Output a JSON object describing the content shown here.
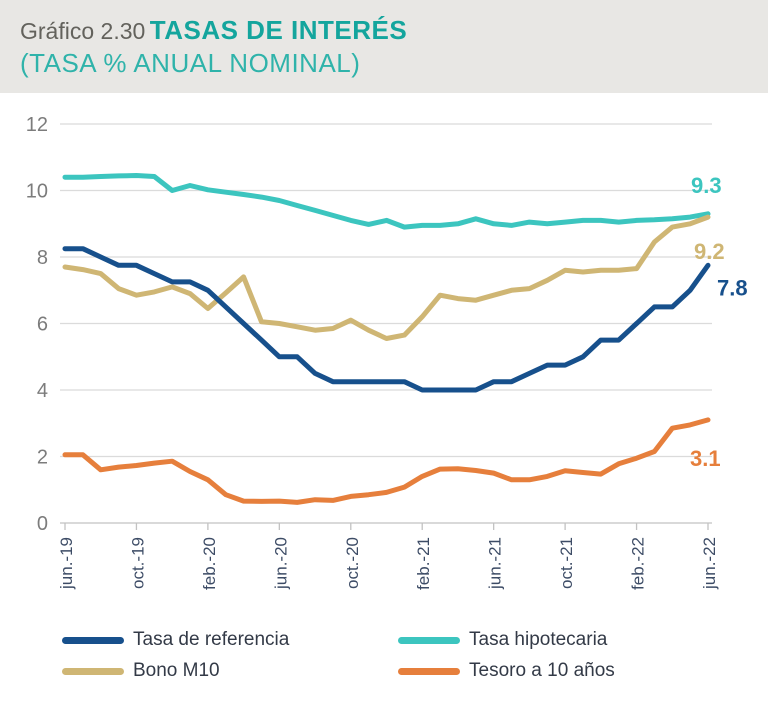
{
  "header": {
    "figure_label": "Gráfico 2.30",
    "title": "TASAS DE INTERÉS",
    "subtitle": "(TASA % ANUAL NOMINAL)"
  },
  "chart_data": {
    "type": "line",
    "n_points": 37,
    "tick_every": 4,
    "x_tick_labels": [
      "jun.-19",
      "oct.-19",
      "feb.-20",
      "jun.-20",
      "oct.-20",
      "feb.-21",
      "jun.-21",
      "oct.-21",
      "feb.-22",
      "jun.-22"
    ],
    "y_ticks": [
      0,
      2,
      4,
      6,
      8,
      10,
      12
    ],
    "ylim": [
      0,
      12
    ],
    "grid": "horizontal",
    "legend_position": "bottom",
    "series": [
      {
        "name": "Tasa de referencia",
        "color": "#17508c",
        "end_label": "7.8",
        "values": [
          8.25,
          8.25,
          8.0,
          7.75,
          7.75,
          7.5,
          7.25,
          7.25,
          7.0,
          6.5,
          6.0,
          5.5,
          5.0,
          5.0,
          4.5,
          4.25,
          4.25,
          4.25,
          4.25,
          4.25,
          4.0,
          4.0,
          4.0,
          4.0,
          4.25,
          4.25,
          4.5,
          4.75,
          4.75,
          5.0,
          5.5,
          5.5,
          6.0,
          6.5,
          6.5,
          7.0,
          7.75
        ]
      },
      {
        "name": "Tasa hipotecaria",
        "color": "#3cc5bf",
        "end_label": "9.3",
        "values": [
          10.4,
          10.4,
          10.42,
          10.44,
          10.45,
          10.42,
          10.0,
          10.15,
          10.02,
          9.95,
          9.88,
          9.8,
          9.7,
          9.55,
          9.4,
          9.25,
          9.1,
          8.98,
          9.1,
          8.9,
          8.95,
          8.95,
          9.0,
          9.15,
          9.0,
          8.95,
          9.05,
          9.0,
          9.05,
          9.1,
          9.1,
          9.05,
          9.1,
          9.12,
          9.15,
          9.2,
          9.3
        ]
      },
      {
        "name": "Bono M10",
        "color": "#cfb674",
        "end_label": "9.2",
        "values": [
          7.7,
          7.62,
          7.5,
          7.05,
          6.85,
          6.95,
          7.1,
          6.9,
          6.45,
          6.92,
          7.4,
          6.05,
          6.0,
          5.9,
          5.8,
          5.85,
          6.1,
          5.8,
          5.55,
          5.65,
          6.2,
          6.85,
          6.75,
          6.7,
          6.85,
          7.0,
          7.05,
          7.3,
          7.6,
          7.55,
          7.6,
          7.6,
          7.65,
          8.45,
          8.9,
          9.0,
          9.2
        ]
      },
      {
        "name": "Tesoro a 10 años",
        "color": "#e67f3c",
        "end_label": "3.1",
        "values": [
          2.05,
          2.05,
          1.6,
          1.68,
          1.73,
          1.8,
          1.86,
          1.55,
          1.3,
          0.85,
          0.66,
          0.65,
          0.66,
          0.62,
          0.7,
          0.68,
          0.8,
          0.85,
          0.92,
          1.08,
          1.4,
          1.62,
          1.63,
          1.58,
          1.5,
          1.3,
          1.3,
          1.4,
          1.57,
          1.52,
          1.47,
          1.78,
          1.95,
          2.15,
          2.85,
          2.95,
          3.1
        ]
      }
    ]
  },
  "legend": {
    "items": [
      {
        "label": "Tasa de referencia",
        "color": "#17508c"
      },
      {
        "label": "Tasa hipotecaria",
        "color": "#3cc5bf"
      },
      {
        "label": "Bono M10",
        "color": "#cfb674"
      },
      {
        "label": "Tesoro a 10 años",
        "color": "#e67f3c"
      }
    ]
  }
}
